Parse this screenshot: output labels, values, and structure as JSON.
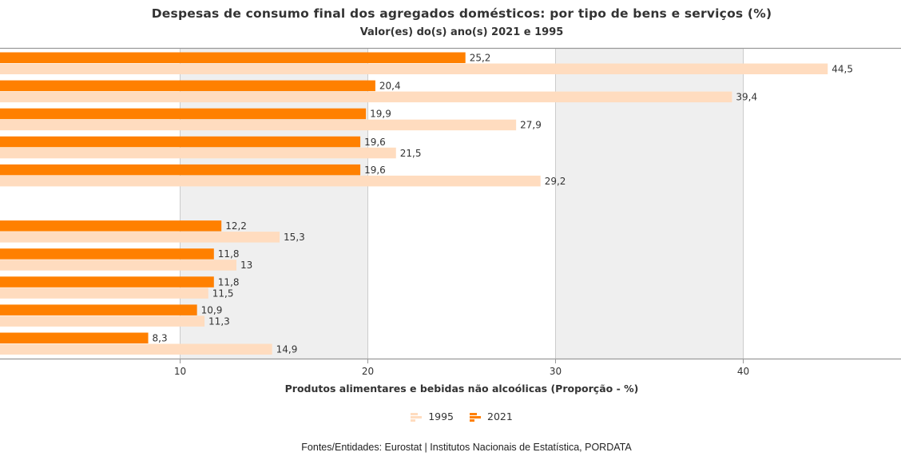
{
  "header": {
    "title": "Despesas de consumo final dos agregados domésticos: por tipo de bens e serviços (%)",
    "subtitle": "Valor(es) do(s) ano(s) 2021 e 1995"
  },
  "footer": {
    "source": "Fontes/Entidades: Eurostat | Institutos Nacionais de Estatística, PORDATA"
  },
  "colors": {
    "s2021": "#ff8000",
    "s1995": "#ffdcbf",
    "band": "#efefef",
    "axis": "#999999"
  },
  "legend": [
    {
      "label": "1995",
      "color": "#ffdcbf",
      "icon": "bar-series-icon"
    },
    {
      "label": "2021",
      "color": "#ff8000",
      "icon": "bar-series-icon"
    }
  ],
  "chart_data": {
    "type": "bar",
    "orientation": "horizontal",
    "xlabel": "Produtos alimentares e bebidas não alcoólicas (Proporção - %)",
    "xticks": [
      10,
      20,
      30,
      40
    ],
    "xlim": [
      0,
      48.6
    ],
    "grid": true,
    "legend_position": "bottom-center",
    "categories": [
      "",
      "",
      "",
      "",
      "",
      "",
      "",
      "",
      "",
      "",
      ""
    ],
    "series": [
      {
        "name": "2021",
        "color": "#ff8000",
        "values": [
          25.2,
          20.4,
          19.9,
          19.6,
          19.6,
          null,
          12.2,
          11.8,
          11.8,
          10.9,
          8.3
        ],
        "labels": [
          "25,2",
          "20,4",
          "19,9",
          "19,6",
          "19,6",
          "",
          "12,2",
          "11,8",
          "11,8",
          "10,9",
          "8,3"
        ]
      },
      {
        "name": "1995",
        "color": "#ffdcbf",
        "values": [
          44.5,
          39.4,
          27.9,
          21.5,
          29.2,
          null,
          15.3,
          13,
          11.5,
          11.3,
          14.9
        ],
        "labels": [
          "44,5",
          "39,4",
          "27,9",
          "21,5",
          "29,2",
          "",
          "15,3",
          "13",
          "11,5",
          "11,3",
          "14,9"
        ]
      }
    ]
  }
}
